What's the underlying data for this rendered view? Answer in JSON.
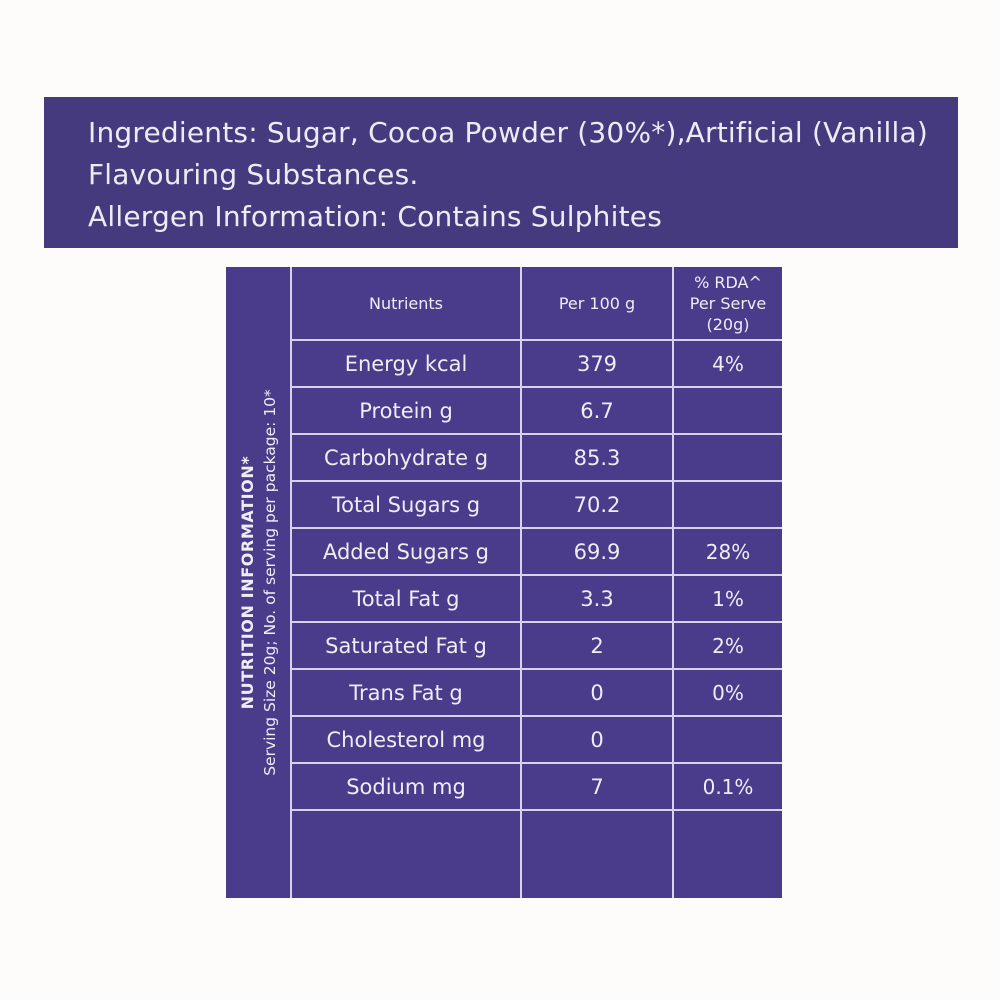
{
  "banner": {
    "lines": [
      "Ingredients: Sugar, Cocoa Powder (30%*),Artificial (Vanilla)",
      "Flavouring Substances.",
      "Allergen Information: Contains Sulphites"
    ]
  },
  "table": {
    "side_label_title": "NUTRITION INFORMATION*",
    "side_label_subtitle": "Serving Size 20g; No. of serving per package: 10*",
    "headers": {
      "nutrients": "Nutrients",
      "per_100g": "Per 100 g",
      "rda_line1": "% RDA^",
      "rda_line2": "Per Serve",
      "rda_line3": "(20g)"
    },
    "rows": [
      {
        "nutrient": "Energy kcal",
        "per_100g": "379",
        "rda": "4%"
      },
      {
        "nutrient": "Protein g",
        "per_100g": "6.7",
        "rda": ""
      },
      {
        "nutrient": "Carbohydrate g",
        "per_100g": "85.3",
        "rda": ""
      },
      {
        "nutrient": "Total Sugars g",
        "per_100g": "70.2",
        "rda": ""
      },
      {
        "nutrient": "Added Sugars g",
        "per_100g": "69.9",
        "rda": "28%"
      },
      {
        "nutrient": "Total Fat g",
        "per_100g": "3.3",
        "rda": "1%"
      },
      {
        "nutrient": "Saturated Fat g",
        "per_100g": "2",
        "rda": "2%"
      },
      {
        "nutrient": "Trans Fat g",
        "per_100g": "0",
        "rda": "0%"
      },
      {
        "nutrient": "Cholesterol mg",
        "per_100g": "0",
        "rda": ""
      },
      {
        "nutrient": "Sodium mg",
        "per_100g": "7",
        "rda": "0.1%"
      }
    ]
  },
  "colors": {
    "banner_purple": "#463A7E",
    "table_purple": "#4A3C8A",
    "grid_line": "#D8D3EC",
    "text_light": "#EFEDF7",
    "page_background": "#FDFCFA"
  }
}
